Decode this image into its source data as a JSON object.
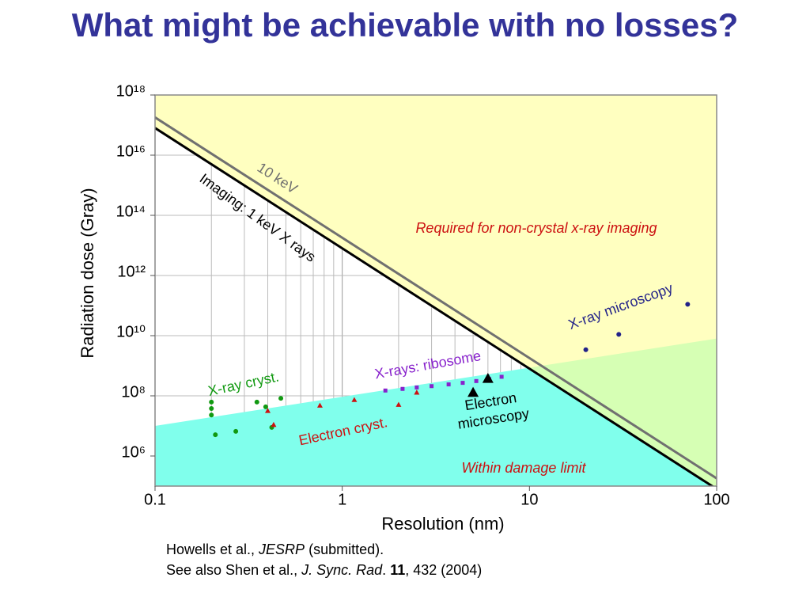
{
  "title": "What might be achievable with no losses?",
  "chart_data": {
    "type": "scatter",
    "xlabel": "Resolution (nm)",
    "ylabel": "Radiation dose (Gray)",
    "xlog": true,
    "ylog": true,
    "grid": true,
    "xlim": [
      0.1,
      100
    ],
    "ylim": [
      100000,
      1000000000000000000
    ],
    "xticks": [
      0.1,
      1,
      10,
      100
    ],
    "xgrid": [
      0.2,
      0.3,
      0.4,
      0.5,
      0.6,
      0.7,
      0.8,
      0.9,
      2,
      3,
      4,
      5,
      6,
      7,
      8,
      9,
      20,
      30,
      40,
      50,
      60,
      70,
      80,
      90
    ],
    "yticks": [
      {
        "value": 1000000,
        "label": "10⁶"
      },
      {
        "value": 100000000,
        "label": "10⁸"
      },
      {
        "value": 10000000000,
        "label": "10¹⁰"
      },
      {
        "value": 1000000000000,
        "label": "10¹²"
      },
      {
        "value": 100000000000000,
        "label": "10¹⁴"
      },
      {
        "value": 10000000000000000,
        "label": "10¹⁶"
      },
      {
        "value": 1000000000000000000,
        "label": "10¹⁸"
      }
    ],
    "regions": {
      "required": "Required for non-crystal x-ray imaging",
      "required_color": "#ffffc0",
      "both_color": "#d6ffb4",
      "within_color": "#80ffec",
      "none_color": "#ffffff"
    },
    "series": [
      {
        "name": "Imaging: 1 keV X rays",
        "kind": "line",
        "role": "imaging",
        "color": "#000000",
        "x": [
          0.1,
          100
        ],
        "values": [
          80000000000000000,
          80000
        ]
      },
      {
        "name": "10 keV",
        "kind": "line",
        "color": "#707070",
        "x": [
          0.1,
          100
        ],
        "values": [
          180000000000000000,
          180000
        ]
      },
      {
        "name": "Within damage limit",
        "kind": "boundary",
        "color": "#cc1111",
        "x": [
          0.1,
          100
        ],
        "values": [
          10000000,
          8000000000
        ]
      },
      {
        "name": "X-ray cryst.",
        "kind": "points",
        "marker": "circle",
        "color": "#119911",
        "x": [
          0.2,
          0.2,
          0.2,
          0.21,
          0.27,
          0.35,
          0.39,
          0.42,
          0.47
        ],
        "values": [
          62000000,
          38000000,
          23000000,
          5100000,
          6600000,
          62000000,
          43000000,
          8900000,
          83000000
        ]
      },
      {
        "name": "Electron cryst.",
        "kind": "points",
        "marker": "triangle",
        "color": "#cc1111",
        "x": [
          0.4,
          0.43,
          0.76,
          1.16,
          2.0,
          2.5
        ],
        "values": [
          32000000,
          11000000,
          48000000,
          74000000,
          51000000,
          130000000
        ]
      },
      {
        "name": "X-rays: ribosome",
        "kind": "points",
        "marker": "square",
        "color": "#8822cc",
        "x": [
          1.7,
          2.1,
          2.5,
          3.0,
          3.7,
          4.4,
          5.2,
          6.1,
          7.1
        ],
        "values": [
          150000000,
          170000000,
          190000000,
          210000000,
          240000000,
          270000000,
          310000000,
          360000000,
          430000000
        ]
      },
      {
        "name": "Electron microscopy",
        "kind": "points",
        "marker": "triangle-big",
        "color": "#000000",
        "x": [
          5,
          6
        ],
        "values": [
          130000000,
          380000000
        ]
      },
      {
        "name": "X-ray microscopy",
        "kind": "points",
        "marker": "circle",
        "color": "#222288",
        "x": [
          20,
          30,
          70
        ],
        "values": [
          3400000000,
          11000000000,
          110000000000
        ]
      }
    ]
  },
  "citation": {
    "line1": [
      "Howells et al., ",
      "JESRP",
      " (submitted)."
    ],
    "line2": [
      "See also Shen et al., ",
      "J. Sync. Rad",
      ". ",
      "11",
      ", 432 (2004)"
    ]
  }
}
